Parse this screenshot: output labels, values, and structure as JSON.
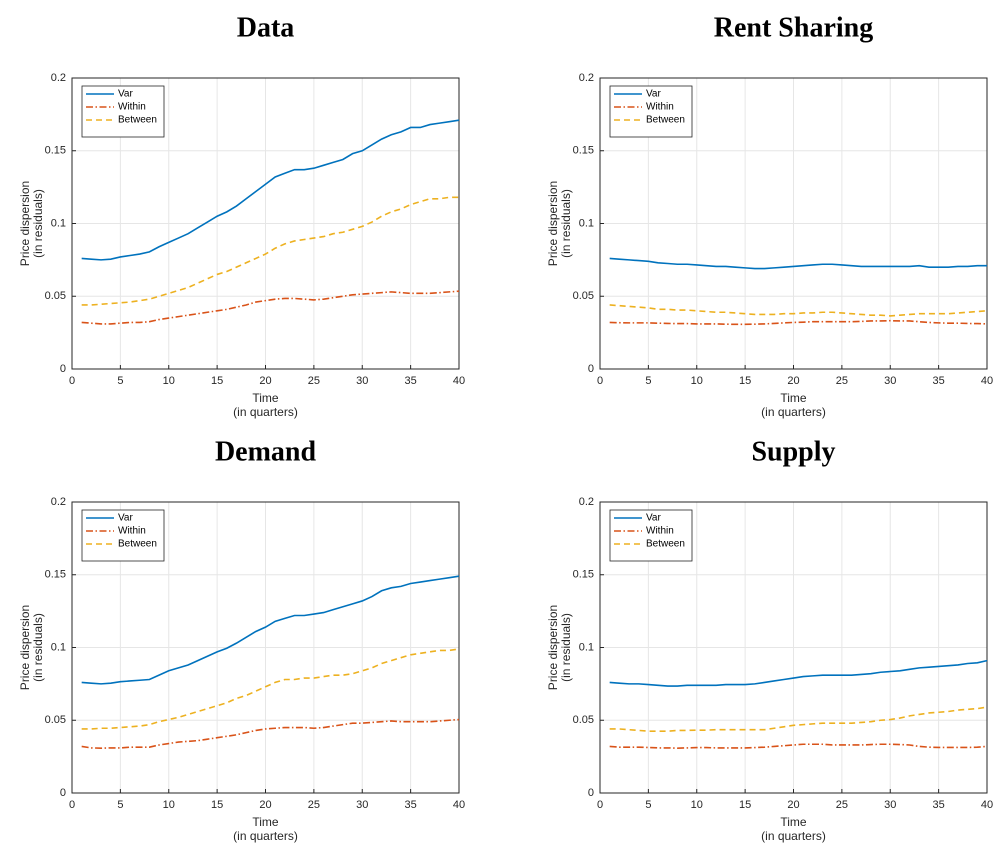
{
  "chart_data": [
    {
      "type": "line",
      "title": "Data",
      "xlabel": [
        "Time",
        "(in quarters)"
      ],
      "ylabel": [
        "Price dispersion",
        "(in residuals)"
      ],
      "x": [
        1,
        2,
        3,
        4,
        5,
        6,
        7,
        8,
        9,
        10,
        11,
        12,
        13,
        14,
        15,
        16,
        17,
        18,
        19,
        20,
        21,
        22,
        23,
        24,
        25,
        26,
        27,
        28,
        29,
        30,
        31,
        32,
        33,
        34,
        35,
        36,
        37,
        38,
        39,
        40
      ],
      "xlim": [
        0,
        40
      ],
      "xticks": [
        0,
        5,
        10,
        15,
        20,
        25,
        30,
        35,
        40
      ],
      "ylim": [
        0,
        0.2
      ],
      "yticks": [
        0,
        0.05,
        0.1,
        0.15,
        0.2
      ],
      "grid": true,
      "legend": "upper-left",
      "series": [
        {
          "name": "Var",
          "color": "#0072bd",
          "dash": "solid",
          "values": [
            0.076,
            0.0755,
            0.075,
            0.0755,
            0.077,
            0.078,
            0.079,
            0.0805,
            0.084,
            0.087,
            0.09,
            0.093,
            0.097,
            0.101,
            0.105,
            0.108,
            0.112,
            0.117,
            0.122,
            0.127,
            0.132,
            0.1345,
            0.137,
            0.137,
            0.138,
            0.14,
            0.142,
            0.144,
            0.148,
            0.15,
            0.154,
            0.158,
            0.161,
            0.163,
            0.166,
            0.166,
            0.168,
            0.169,
            0.17,
            0.171
          ]
        },
        {
          "name": "Within",
          "color": "#d95319",
          "dash": "dashdot",
          "values": [
            0.032,
            0.0315,
            0.031,
            0.031,
            0.0315,
            0.032,
            0.032,
            0.0325,
            0.034,
            0.035,
            0.036,
            0.037,
            0.038,
            0.039,
            0.04,
            0.041,
            0.0425,
            0.044,
            0.046,
            0.047,
            0.048,
            0.0485,
            0.0485,
            0.048,
            0.0475,
            0.048,
            0.049,
            0.05,
            0.051,
            0.0515,
            0.052,
            0.0525,
            0.053,
            0.0525,
            0.052,
            0.052,
            0.052,
            0.0525,
            0.053,
            0.0535
          ]
        },
        {
          "name": "Between",
          "color": "#edb120",
          "dash": "dashed",
          "values": [
            0.044,
            0.044,
            0.0445,
            0.045,
            0.0455,
            0.046,
            0.047,
            0.048,
            0.05,
            0.052,
            0.054,
            0.056,
            0.059,
            0.062,
            0.065,
            0.067,
            0.07,
            0.073,
            0.076,
            0.079,
            0.083,
            0.086,
            0.088,
            0.089,
            0.09,
            0.091,
            0.093,
            0.094,
            0.096,
            0.098,
            0.101,
            0.105,
            0.108,
            0.11,
            0.113,
            0.115,
            0.117,
            0.117,
            0.118,
            0.118
          ]
        }
      ]
    },
    {
      "type": "line",
      "title": "Rent Sharing",
      "xlabel": [
        "Time",
        "(in quarters)"
      ],
      "ylabel": [
        "Price dispersion",
        "(in residuals)"
      ],
      "x": [
        1,
        2,
        3,
        4,
        5,
        6,
        7,
        8,
        9,
        10,
        11,
        12,
        13,
        14,
        15,
        16,
        17,
        18,
        19,
        20,
        21,
        22,
        23,
        24,
        25,
        26,
        27,
        28,
        29,
        30,
        31,
        32,
        33,
        34,
        35,
        36,
        37,
        38,
        39,
        40
      ],
      "xlim": [
        0,
        40
      ],
      "xticks": [
        0,
        5,
        10,
        15,
        20,
        25,
        30,
        35,
        40
      ],
      "ylim": [
        0,
        0.2
      ],
      "yticks": [
        0,
        0.05,
        0.1,
        0.15,
        0.2
      ],
      "grid": true,
      "legend": "upper-left",
      "series": [
        {
          "name": "Var",
          "color": "#0072bd",
          "dash": "solid",
          "values": [
            0.076,
            0.0755,
            0.075,
            0.0745,
            0.074,
            0.073,
            0.0725,
            0.072,
            0.072,
            0.0715,
            0.071,
            0.0705,
            0.0705,
            0.07,
            0.0695,
            0.069,
            0.069,
            0.0695,
            0.07,
            0.0705,
            0.071,
            0.0715,
            0.072,
            0.072,
            0.0715,
            0.071,
            0.0705,
            0.0705,
            0.0705,
            0.0705,
            0.0705,
            0.0705,
            0.071,
            0.07,
            0.07,
            0.07,
            0.0705,
            0.0705,
            0.071,
            0.071
          ]
        },
        {
          "name": "Within",
          "color": "#d95319",
          "dash": "dashdot",
          "values": [
            0.032,
            0.0318,
            0.0317,
            0.0317,
            0.0317,
            0.0315,
            0.0313,
            0.0312,
            0.0312,
            0.031,
            0.031,
            0.031,
            0.0308,
            0.0307,
            0.0307,
            0.0308,
            0.031,
            0.0313,
            0.0317,
            0.032,
            0.0322,
            0.0325,
            0.0325,
            0.0325,
            0.0325,
            0.0325,
            0.0327,
            0.033,
            0.033,
            0.0332,
            0.033,
            0.033,
            0.0325,
            0.032,
            0.0317,
            0.0315,
            0.0315,
            0.0313,
            0.0312,
            0.031
          ]
        },
        {
          "name": "Between",
          "color": "#edb120",
          "dash": "dashed",
          "values": [
            0.044,
            0.0435,
            0.043,
            0.0425,
            0.042,
            0.041,
            0.041,
            0.0405,
            0.0405,
            0.04,
            0.0395,
            0.039,
            0.039,
            0.0385,
            0.038,
            0.0375,
            0.0375,
            0.0375,
            0.038,
            0.038,
            0.0385,
            0.0385,
            0.039,
            0.039,
            0.0385,
            0.038,
            0.0375,
            0.037,
            0.037,
            0.0365,
            0.037,
            0.0375,
            0.038,
            0.038,
            0.038,
            0.038,
            0.0385,
            0.039,
            0.0395,
            0.04
          ]
        }
      ]
    },
    {
      "type": "line",
      "title": "Demand",
      "xlabel": [
        "Time",
        "(in quarters)"
      ],
      "ylabel": [
        "Price dispersion",
        "(in residuals)"
      ],
      "x": [
        1,
        2,
        3,
        4,
        5,
        6,
        7,
        8,
        9,
        10,
        11,
        12,
        13,
        14,
        15,
        16,
        17,
        18,
        19,
        20,
        21,
        22,
        23,
        24,
        25,
        26,
        27,
        28,
        29,
        30,
        31,
        32,
        33,
        34,
        35,
        36,
        37,
        38,
        39,
        40
      ],
      "xlim": [
        0,
        40
      ],
      "xticks": [
        0,
        5,
        10,
        15,
        20,
        25,
        30,
        35,
        40
      ],
      "ylim": [
        0,
        0.2
      ],
      "yticks": [
        0,
        0.05,
        0.1,
        0.15,
        0.2
      ],
      "grid": true,
      "legend": "upper-left",
      "series": [
        {
          "name": "Var",
          "color": "#0072bd",
          "dash": "solid",
          "values": [
            0.076,
            0.0755,
            0.075,
            0.0755,
            0.0765,
            0.077,
            0.0775,
            0.078,
            0.081,
            0.084,
            0.086,
            0.088,
            0.091,
            0.094,
            0.097,
            0.0995,
            0.103,
            0.107,
            0.111,
            0.114,
            0.118,
            0.12,
            0.122,
            0.122,
            0.123,
            0.124,
            0.126,
            0.128,
            0.13,
            0.132,
            0.135,
            0.139,
            0.141,
            0.142,
            0.144,
            0.145,
            0.146,
            0.147,
            0.148,
            0.149
          ]
        },
        {
          "name": "Within",
          "color": "#d95319",
          "dash": "dashdot",
          "values": [
            0.032,
            0.031,
            0.0308,
            0.031,
            0.031,
            0.0315,
            0.0315,
            0.0315,
            0.033,
            0.034,
            0.035,
            0.0355,
            0.036,
            0.037,
            0.038,
            0.039,
            0.04,
            0.0415,
            0.043,
            0.044,
            0.0445,
            0.045,
            0.045,
            0.045,
            0.0445,
            0.045,
            0.046,
            0.047,
            0.048,
            0.048,
            0.0485,
            0.049,
            0.0495,
            0.049,
            0.049,
            0.049,
            0.049,
            0.0495,
            0.05,
            0.0505
          ]
        },
        {
          "name": "Between",
          "color": "#edb120",
          "dash": "dashed",
          "values": [
            0.044,
            0.044,
            0.0445,
            0.0445,
            0.045,
            0.0455,
            0.046,
            0.047,
            0.049,
            0.0505,
            0.052,
            0.054,
            0.056,
            0.058,
            0.06,
            0.062,
            0.065,
            0.067,
            0.07,
            0.073,
            0.076,
            0.078,
            0.078,
            0.079,
            0.079,
            0.08,
            0.081,
            0.081,
            0.082,
            0.084,
            0.086,
            0.089,
            0.091,
            0.093,
            0.095,
            0.096,
            0.097,
            0.098,
            0.098,
            0.099
          ]
        }
      ]
    },
    {
      "type": "line",
      "title": "Supply",
      "xlabel": [
        "Time",
        "(in quarters)"
      ],
      "ylabel": [
        "Price dispersion",
        "(in residuals)"
      ],
      "x": [
        1,
        2,
        3,
        4,
        5,
        6,
        7,
        8,
        9,
        10,
        11,
        12,
        13,
        14,
        15,
        16,
        17,
        18,
        19,
        20,
        21,
        22,
        23,
        24,
        25,
        26,
        27,
        28,
        29,
        30,
        31,
        32,
        33,
        34,
        35,
        36,
        37,
        38,
        39,
        40
      ],
      "xlim": [
        0,
        40
      ],
      "xticks": [
        0,
        5,
        10,
        15,
        20,
        25,
        30,
        35,
        40
      ],
      "ylim": [
        0,
        0.2
      ],
      "yticks": [
        0,
        0.05,
        0.1,
        0.15,
        0.2
      ],
      "grid": true,
      "legend": "upper-left",
      "series": [
        {
          "name": "Var",
          "color": "#0072bd",
          "dash": "solid",
          "values": [
            0.076,
            0.0755,
            0.075,
            0.075,
            0.0745,
            0.074,
            0.0735,
            0.0735,
            0.074,
            0.074,
            0.074,
            0.074,
            0.0745,
            0.0745,
            0.0745,
            0.075,
            0.076,
            0.077,
            0.078,
            0.079,
            0.08,
            0.0805,
            0.081,
            0.081,
            0.081,
            0.081,
            0.0815,
            0.082,
            0.083,
            0.0835,
            0.084,
            0.085,
            0.086,
            0.0865,
            0.087,
            0.0875,
            0.088,
            0.089,
            0.0895,
            0.091
          ]
        },
        {
          "name": "Within",
          "color": "#d95319",
          "dash": "dashdot",
          "values": [
            0.032,
            0.0315,
            0.0315,
            0.0315,
            0.0313,
            0.031,
            0.031,
            0.0308,
            0.031,
            0.0312,
            0.0312,
            0.031,
            0.031,
            0.031,
            0.031,
            0.0312,
            0.0315,
            0.032,
            0.0325,
            0.033,
            0.0335,
            0.0335,
            0.0335,
            0.033,
            0.033,
            0.033,
            0.033,
            0.0333,
            0.0335,
            0.0335,
            0.0333,
            0.033,
            0.032,
            0.0315,
            0.0313,
            0.0313,
            0.0313,
            0.0313,
            0.0315,
            0.032
          ]
        },
        {
          "name": "Between",
          "color": "#edb120",
          "dash": "dashed",
          "values": [
            0.044,
            0.044,
            0.0435,
            0.043,
            0.0425,
            0.0425,
            0.0425,
            0.043,
            0.043,
            0.0432,
            0.0432,
            0.0435,
            0.0435,
            0.0435,
            0.0435,
            0.0435,
            0.0435,
            0.0445,
            0.0455,
            0.0465,
            0.047,
            0.0475,
            0.048,
            0.048,
            0.048,
            0.048,
            0.0485,
            0.049,
            0.05,
            0.0505,
            0.0515,
            0.053,
            0.054,
            0.055,
            0.0555,
            0.056,
            0.057,
            0.0575,
            0.058,
            0.059
          ]
        }
      ]
    }
  ]
}
